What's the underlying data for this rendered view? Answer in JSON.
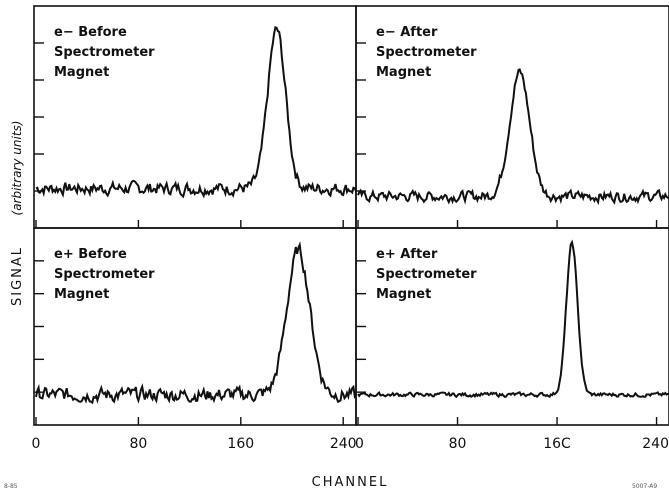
{
  "chart_data": {
    "type": "line",
    "xlabel": "CHANNEL",
    "ylabel_main": "SIGNAL",
    "ylabel_units": "(arbitrary units)",
    "xlim": [
      0,
      250
    ],
    "x_ticks_left": [
      "0",
      "80",
      "160",
      "240"
    ],
    "x_ticks_right": [
      "0",
      "80",
      "16C",
      "240"
    ],
    "x_tick_values": [
      0,
      80,
      160,
      240
    ],
    "corner_left": "8-85",
    "corner_right": "5007-A9",
    "panels": [
      {
        "id": "electron-before",
        "label_lines": [
          "e− Before",
          "Spectrometer",
          "Magnet"
        ],
        "baseline": 0.0,
        "noise": 0.06,
        "peaks": [
          {
            "center": 188,
            "width": 7,
            "height": 1.0
          }
        ],
        "ylim": [
          -0.25,
          1.15
        ]
      },
      {
        "id": "electron-after",
        "label_lines": [
          "e− After",
          "Spectrometer",
          "Magnet"
        ],
        "baseline": -0.05,
        "noise": 0.05,
        "peaks": [
          {
            "center": 130,
            "width": 8,
            "height": 0.78
          }
        ],
        "ylim": [
          -0.25,
          1.15
        ]
      },
      {
        "id": "positron-before",
        "label_lines": [
          "e+ Before",
          "Spectrometer",
          "Magnet"
        ],
        "baseline": 0.0,
        "noise": 0.07,
        "peaks": [
          {
            "center": 205,
            "width": 9,
            "height": 0.95
          }
        ],
        "ylim": [
          -0.2,
          1.1
        ]
      },
      {
        "id": "positron-after",
        "label_lines": [
          "e+ After",
          "Spectrometer",
          "Magnet"
        ],
        "baseline": 0.0,
        "noise": 0.02,
        "peaks": [
          {
            "center": 172,
            "width": 4.5,
            "height": 1.0
          }
        ],
        "ylim": [
          -0.2,
          1.1
        ]
      }
    ]
  }
}
